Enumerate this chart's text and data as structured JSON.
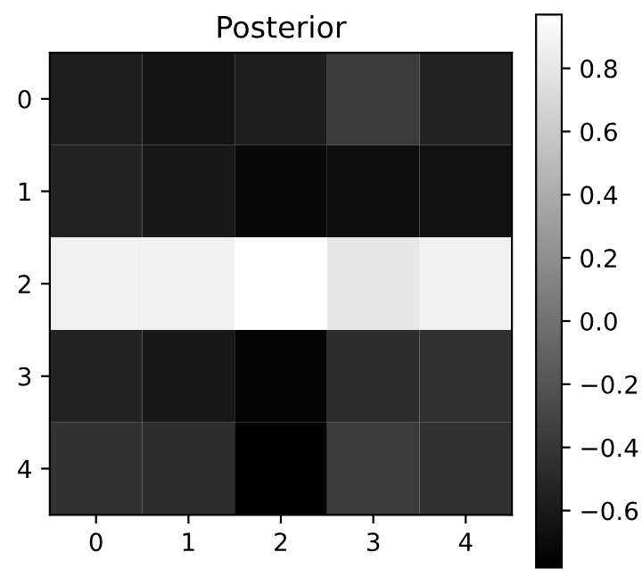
{
  "chart_data": {
    "type": "heatmap",
    "title": "Posterior",
    "categories": [
      "0",
      "1",
      "2",
      "3",
      "4"
    ],
    "y_categories": [
      "0",
      "1",
      "2",
      "3",
      "4"
    ],
    "cells": [
      [
        -0.57,
        -0.64,
        -0.57,
        -0.37,
        -0.54
      ],
      [
        -0.54,
        -0.61,
        -0.71,
        -0.68,
        -0.66
      ],
      [
        0.87,
        0.87,
        0.97,
        0.8,
        0.87
      ],
      [
        -0.54,
        -0.61,
        -0.75,
        -0.47,
        -0.44
      ],
      [
        -0.44,
        -0.47,
        -0.78,
        -0.37,
        -0.44
      ]
    ],
    "clim": [
      -0.78,
      0.97
    ],
    "cticks": [
      -0.6,
      -0.4,
      -0.2,
      {
        "value": 0,
        "label": "0.0"
      },
      0.2,
      0.4,
      0.6,
      0.8
    ],
    "grid": false
  }
}
